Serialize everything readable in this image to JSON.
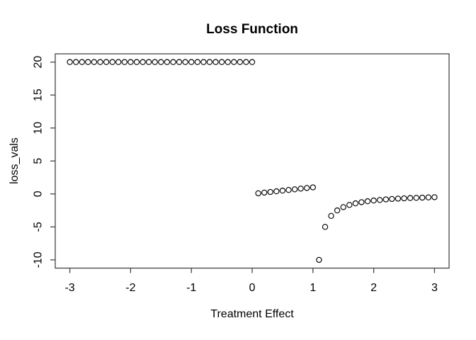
{
  "title": "Loss Function",
  "chart_data": {
    "type": "scatter",
    "title": "Loss Function",
    "xlabel": "Treatment Effect",
    "ylabel": "loss_vals",
    "xlim": [
      -3.24,
      3.24
    ],
    "ylim": [
      -11.25,
      21.25
    ],
    "x_ticks": [
      -3,
      -2,
      -1,
      0,
      1,
      2,
      3
    ],
    "y_ticks": [
      -10,
      -5,
      0,
      5,
      10,
      15,
      20
    ],
    "grid": false,
    "legend_position": "none",
    "marker": "open-circle",
    "marker_color": "#000000",
    "axis_color": "#454545",
    "background": "#ffffff",
    "series": [
      {
        "name": "loss_vals",
        "points": [
          [
            -3.0,
            20
          ],
          [
            -2.9,
            20
          ],
          [
            -2.8,
            20
          ],
          [
            -2.7,
            20
          ],
          [
            -2.6,
            20
          ],
          [
            -2.5,
            20
          ],
          [
            -2.4,
            20
          ],
          [
            -2.3,
            20
          ],
          [
            -2.2,
            20
          ],
          [
            -2.1,
            20
          ],
          [
            -2.0,
            20
          ],
          [
            -1.9,
            20
          ],
          [
            -1.8,
            20
          ],
          [
            -1.7,
            20
          ],
          [
            -1.6,
            20
          ],
          [
            -1.5,
            20
          ],
          [
            -1.4,
            20
          ],
          [
            -1.3,
            20
          ],
          [
            -1.2,
            20
          ],
          [
            -1.1,
            20
          ],
          [
            -1.0,
            20
          ],
          [
            -0.9,
            20
          ],
          [
            -0.8,
            20
          ],
          [
            -0.7,
            20
          ],
          [
            -0.6,
            20
          ],
          [
            -0.5,
            20
          ],
          [
            -0.4,
            20
          ],
          [
            -0.3,
            20
          ],
          [
            -0.2,
            20
          ],
          [
            -0.1,
            20
          ],
          [
            0.0,
            20
          ],
          [
            0.1,
            0.1
          ],
          [
            0.2,
            0.2
          ],
          [
            0.3,
            0.3
          ],
          [
            0.4,
            0.4
          ],
          [
            0.5,
            0.5
          ],
          [
            0.6,
            0.6
          ],
          [
            0.7,
            0.7
          ],
          [
            0.8,
            0.8
          ],
          [
            0.9,
            0.9
          ],
          [
            1.0,
            1.0
          ],
          [
            1.1,
            -10
          ],
          [
            1.2,
            -5
          ],
          [
            1.3,
            -3.3333
          ],
          [
            1.4,
            -2.5
          ],
          [
            1.5,
            -2
          ],
          [
            1.6,
            -1.6667
          ],
          [
            1.7,
            -1.4286
          ],
          [
            1.8,
            -1.25
          ],
          [
            1.9,
            -1.1111
          ],
          [
            2.0,
            -1
          ],
          [
            2.1,
            -0.9091
          ],
          [
            2.2,
            -0.8333
          ],
          [
            2.3,
            -0.7692
          ],
          [
            2.4,
            -0.7143
          ],
          [
            2.5,
            -0.6667
          ],
          [
            2.6,
            -0.625
          ],
          [
            2.7,
            -0.5882
          ],
          [
            2.8,
            -0.5556
          ],
          [
            2.9,
            -0.5263
          ],
          [
            3.0,
            -0.5
          ]
        ]
      }
    ]
  }
}
